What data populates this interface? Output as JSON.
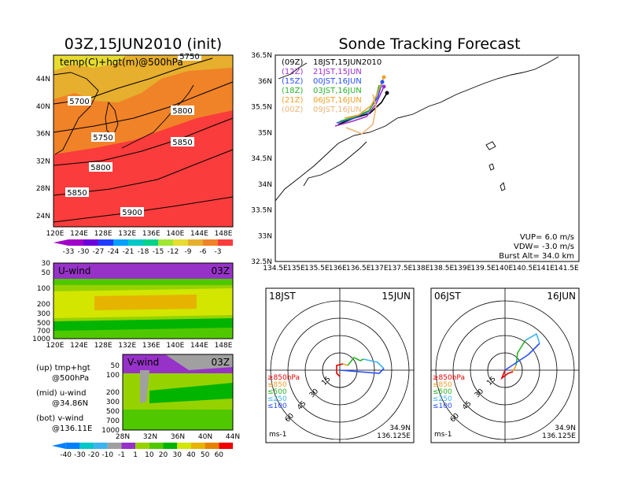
{
  "left_panel": {
    "title": "03Z,15JUN2010 (init)",
    "map_label": "temp(C)+hgt(m)@500hPa",
    "lat_ticks": [
      "44N",
      "40N",
      "36N",
      "32N",
      "28N",
      "24N"
    ],
    "lon_ticks": [
      "120E",
      "124E",
      "128E",
      "132E",
      "136E",
      "140E",
      "144E",
      "148E"
    ],
    "contours": [
      "5700",
      "5750",
      "5800",
      "5750",
      "5850",
      "5800",
      "5850",
      "5900"
    ],
    "temp_colorbar": [
      "-33",
      "-30",
      "-27",
      "-24",
      "-21",
      "-18",
      "-15",
      "-12",
      "-9",
      "-6",
      "-3"
    ],
    "uwind_title": "U-wind",
    "uwind_time": "03Z",
    "vwind_title": "V-wind",
    "vwind_time": "03Z",
    "p_ticks": [
      "30",
      "50",
      "100",
      "200",
      "300",
      "500",
      "700",
      "1000"
    ],
    "vwind_p_ticks": [
      "50",
      "100",
      "200",
      "300",
      "500",
      "700",
      "1000"
    ],
    "vwind_lat_ticks": [
      "28N",
      "32N",
      "36N",
      "40N",
      "44N"
    ],
    "wind_colorbar": [
      "-40",
      "-30",
      "-20",
      "-10",
      "-1",
      "1",
      "10",
      "20",
      "30",
      "40",
      "50",
      "60"
    ],
    "legend_lines": [
      "(up) tmp+hgt",
      "@500hPa",
      "(mid) u-wind",
      "@34.86N",
      "(bot) v-wind",
      "@136.11E"
    ],
    "colors": {
      "temp": [
        "#a000c8",
        "#6e00dc",
        "#1e3cff",
        "#00a0ff",
        "#00c8c8",
        "#00d28c",
        "#a0e632",
        "#e6dc32",
        "#e6af2d",
        "#f08228",
        "#fa3c3c"
      ],
      "wind": [
        "#0080ff",
        "#00c8c8",
        "#3cb4f0",
        "#a0a0a0",
        "#9632c8",
        "#96d200",
        "#50c800",
        "#00b400",
        "#d2e600",
        "#e6b400",
        "#e68200",
        "#f00000"
      ]
    }
  },
  "track_panel": {
    "title": "Sonde Tracking Forecast",
    "lat_ticks": [
      "36.5N",
      "36N",
      "35.5N",
      "35N",
      "34.5N",
      "34N",
      "33.5N",
      "33N",
      "32.5N"
    ],
    "lon_ticks": [
      "134.5E",
      "135E",
      "135.5E",
      "136E",
      "136.5E",
      "137E",
      "137.5E",
      "138E",
      "138.5E",
      "139E",
      "139.5E",
      "140E",
      "140.5E",
      "141E",
      "141.5E"
    ],
    "legend": [
      {
        "run": "(09Z)",
        "time": "18JST,15JUN2010",
        "color": "#000000"
      },
      {
        "run": "(12Z)",
        "time": "21JST,15JUN",
        "color": "#9b30c8"
      },
      {
        "run": "(15Z)",
        "time": "00JST,16JUN",
        "color": "#2850ff"
      },
      {
        "run": "(18Z)",
        "time": "03JST,16JUN",
        "color": "#2ab42a"
      },
      {
        "run": "(21Z)",
        "time": "06JST,16JUN",
        "color": "#f0a028"
      },
      {
        "run": "(00Z)",
        "time": "09JST,16JUN",
        "color": "#f0b478"
      }
    ],
    "params": [
      "VUP= 6.0 m/s",
      "VDW= -3.0 m/s",
      "Burst Alt= 34.0 km"
    ]
  },
  "hodo_left": {
    "time_left": "18JST",
    "time_right": "15JUN",
    "rings": [
      "15",
      "30",
      "45",
      "60"
    ],
    "levels": [
      "≥850hPa",
      "≤850",
      "≤500",
      "≤250",
      "≤100"
    ],
    "level_colors": [
      "#e60000",
      "#f0a028",
      "#2ab42a",
      "#3cb4f0",
      "#2850ff"
    ],
    "location": [
      "34.9N",
      "136.125E"
    ],
    "units": "ms-1"
  },
  "hodo_right": {
    "time_left": "06JST",
    "time_right": "16JUN",
    "rings": [
      "15",
      "30",
      "45",
      "60"
    ],
    "levels": [
      "≥850hPa",
      "≤850",
      "≤500",
      "≤250",
      "≤100"
    ],
    "level_colors": [
      "#e60000",
      "#f0a028",
      "#2ab42a",
      "#3cb4f0",
      "#2850ff"
    ],
    "location": [
      "34.9N",
      "136.125E"
    ],
    "units": "ms-1"
  }
}
